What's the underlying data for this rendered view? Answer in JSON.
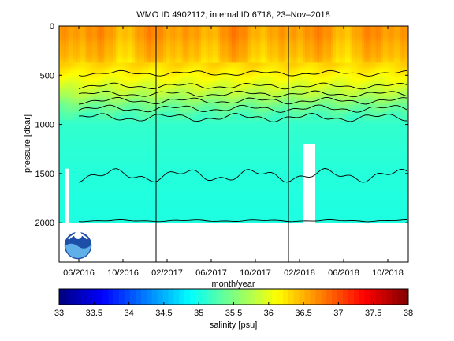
{
  "chart_data": {
    "type": "heatmap",
    "title": "WMO ID 4902112, internal ID 6718, 23–Nov–2018",
    "xlabel": "month/year",
    "ylabel": "pressure [dbar]",
    "colorbar_label": "salinity [psu]",
    "x_ticks": [
      "06/2016",
      "10/2016",
      "02/2017",
      "06/2017",
      "10/2017",
      "02/2018",
      "06/2018",
      "10/2018"
    ],
    "y_ticks": [
      "0",
      "500",
      "1000",
      "1500",
      "2000"
    ],
    "y_tick_values": [
      0,
      500,
      1000,
      1500,
      2000
    ],
    "ylim": [
      0,
      2400
    ],
    "y_reversed": true,
    "colorbar_ticks": [
      "33",
      "33.5",
      "34",
      "34.5",
      "35",
      "35.5",
      "36",
      "36.5",
      "37",
      "37.5",
      "38"
    ],
    "clim": [
      33,
      38
    ],
    "colormap": "jet",
    "year_boundaries": [
      "01/2017",
      "01/2018"
    ],
    "grid": false,
    "profile": {
      "pressure": [
        0,
        100,
        200,
        300,
        400,
        500,
        600,
        700,
        800,
        900,
        1000,
        1500,
        1900,
        2000
      ],
      "salinity": [
        36.6,
        36.6,
        36.5,
        36.45,
        36.3,
        36.15,
        35.95,
        35.75,
        35.45,
        35.25,
        35.12,
        35.05,
        35.02,
        35.02
      ]
    }
  },
  "logo": {
    "name": "noaa-logo"
  }
}
